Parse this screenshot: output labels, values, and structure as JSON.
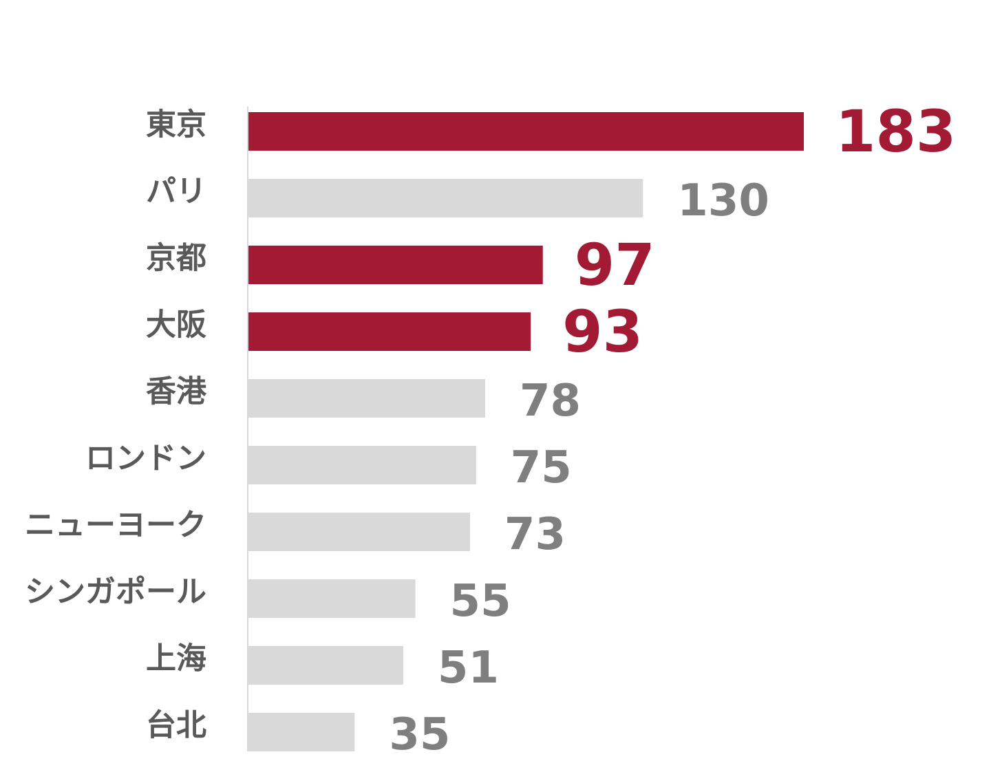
{
  "chart_data": {
    "type": "bar",
    "orientation": "horizontal",
    "categories": [
      "東京",
      "パリ",
      "京都",
      "大阪",
      "香港",
      "ロンドン",
      "ニューヨーク",
      "シンガポール",
      "上海",
      "台北"
    ],
    "values": [
      183,
      130,
      97,
      93,
      78,
      75,
      73,
      55,
      51,
      35
    ],
    "highlighted": [
      true,
      false,
      true,
      true,
      false,
      false,
      false,
      false,
      false,
      false
    ],
    "xlim": [
      0,
      200
    ],
    "grid": false,
    "legend": "none",
    "data_labels": true
  },
  "colors": {
    "highlight": "#A31A34",
    "normal": "#D9D9D9",
    "highlight_label": "#A31A34",
    "normal_label": "#7F7F7F",
    "category_label": "#595959",
    "axis": "#D9D9D9"
  }
}
